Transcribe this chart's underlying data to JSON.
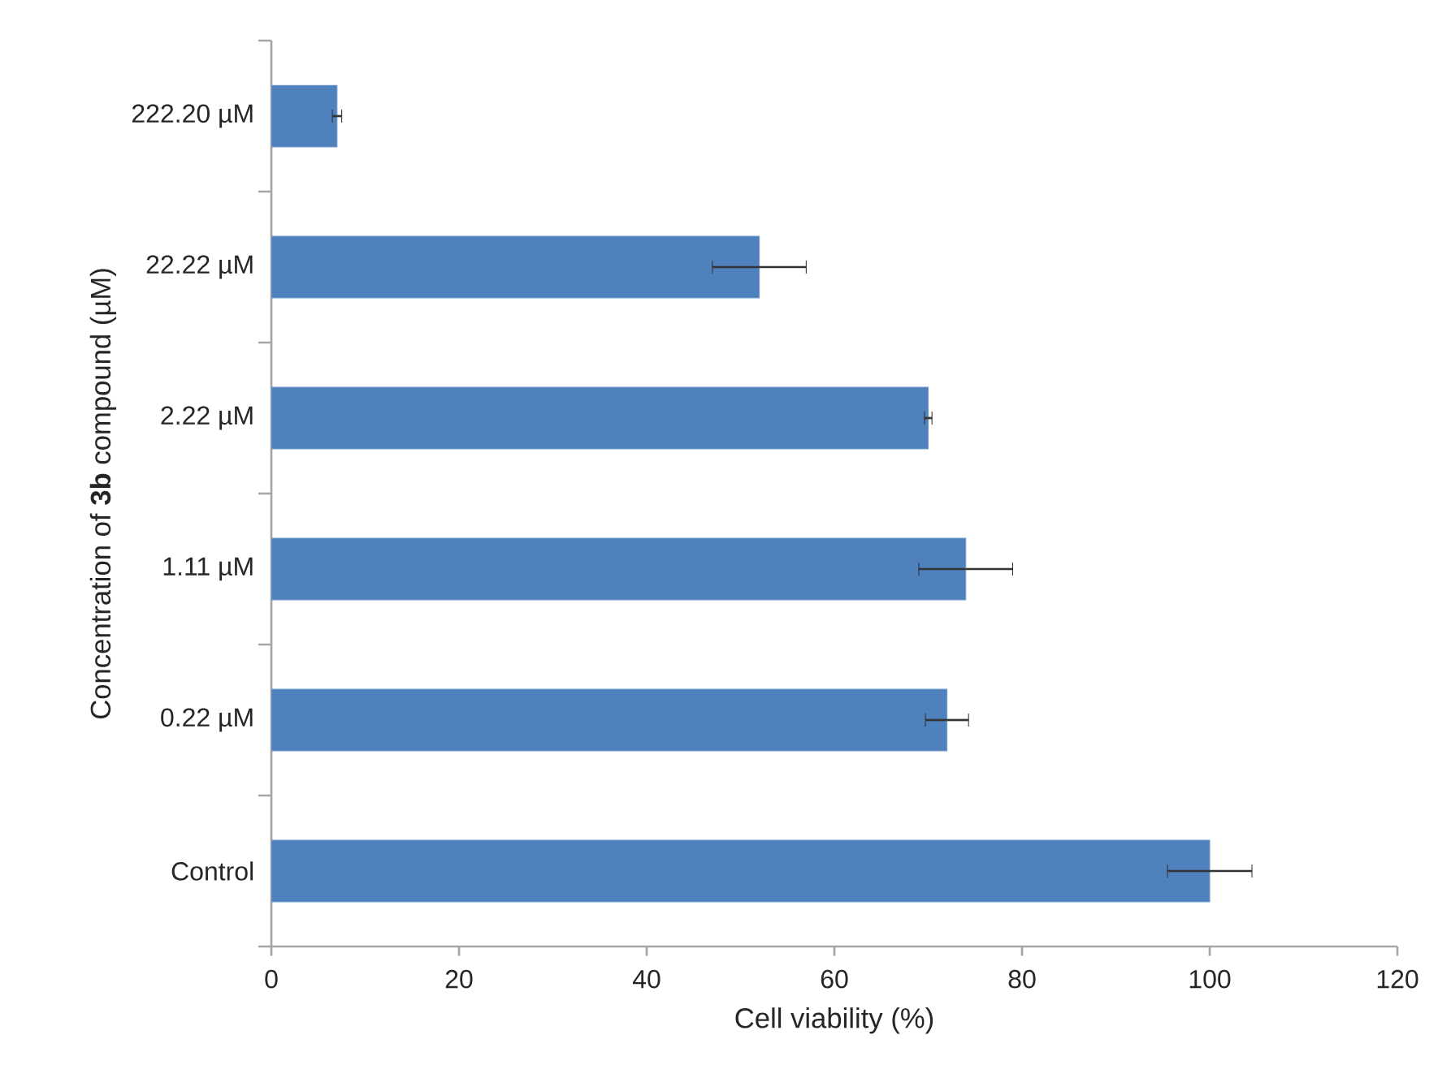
{
  "chart_data": {
    "type": "bar",
    "orientation": "horizontal",
    "categories": [
      "222.20 µM",
      "22.22 µM",
      "2.22 µM",
      "1.11 µM",
      "0.22 µM",
      "Control"
    ],
    "values": [
      7,
      52,
      70,
      74,
      72,
      100
    ],
    "errors": [
      0.5,
      5,
      0.4,
      5,
      2.3,
      4.5
    ],
    "color": "#4f81bd",
    "xlim": [
      0,
      120
    ],
    "xticks": [
      0,
      20,
      40,
      60,
      80,
      100,
      120
    ],
    "xlabel": "Cell viability (%)",
    "ylabel": "Concentration of **3b** compound (µM)"
  }
}
